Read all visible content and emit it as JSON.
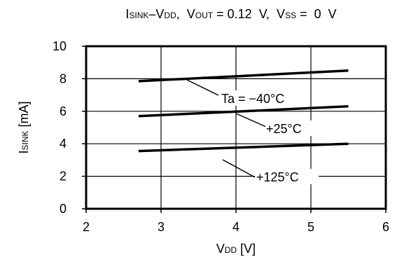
{
  "chart_data": {
    "type": "line",
    "title_parts": {
      "isink_main": "I",
      "isink_sub": "SINK",
      "dash": "–",
      "vdd_main": "V",
      "vdd_sub": "DD",
      "sep1": ",  ",
      "vout_main": "V",
      "vout_sub": "OUT",
      "vout_val": " = 0.12  V,  ",
      "vss_main": "V",
      "vss_sub": "SS",
      "vss_val": " =  0  V"
    },
    "xlabel_parts": {
      "main": "V",
      "sub": "DD",
      "unit": " [V]"
    },
    "ylabel_parts": {
      "main": "I",
      "sub": "SINK",
      "unit": " [mA]"
    },
    "xlim": [
      2,
      6
    ],
    "ylim": [
      0,
      10
    ],
    "x_ticks": [
      "2",
      "3",
      "4",
      "5",
      "6"
    ],
    "y_ticks": [
      "0",
      "2",
      "4",
      "6",
      "8",
      "10"
    ],
    "grid": true,
    "series": [
      {
        "name": "Ta = −40°C",
        "x": [
          2.7,
          5.5
        ],
        "y": [
          7.85,
          8.5
        ]
      },
      {
        "name": "+25°C",
        "x": [
          2.7,
          5.5
        ],
        "y": [
          5.7,
          6.3
        ]
      },
      {
        "name": "+125°C",
        "x": [
          2.7,
          5.5
        ],
        "y": [
          3.55,
          4.0
        ]
      }
    ]
  }
}
